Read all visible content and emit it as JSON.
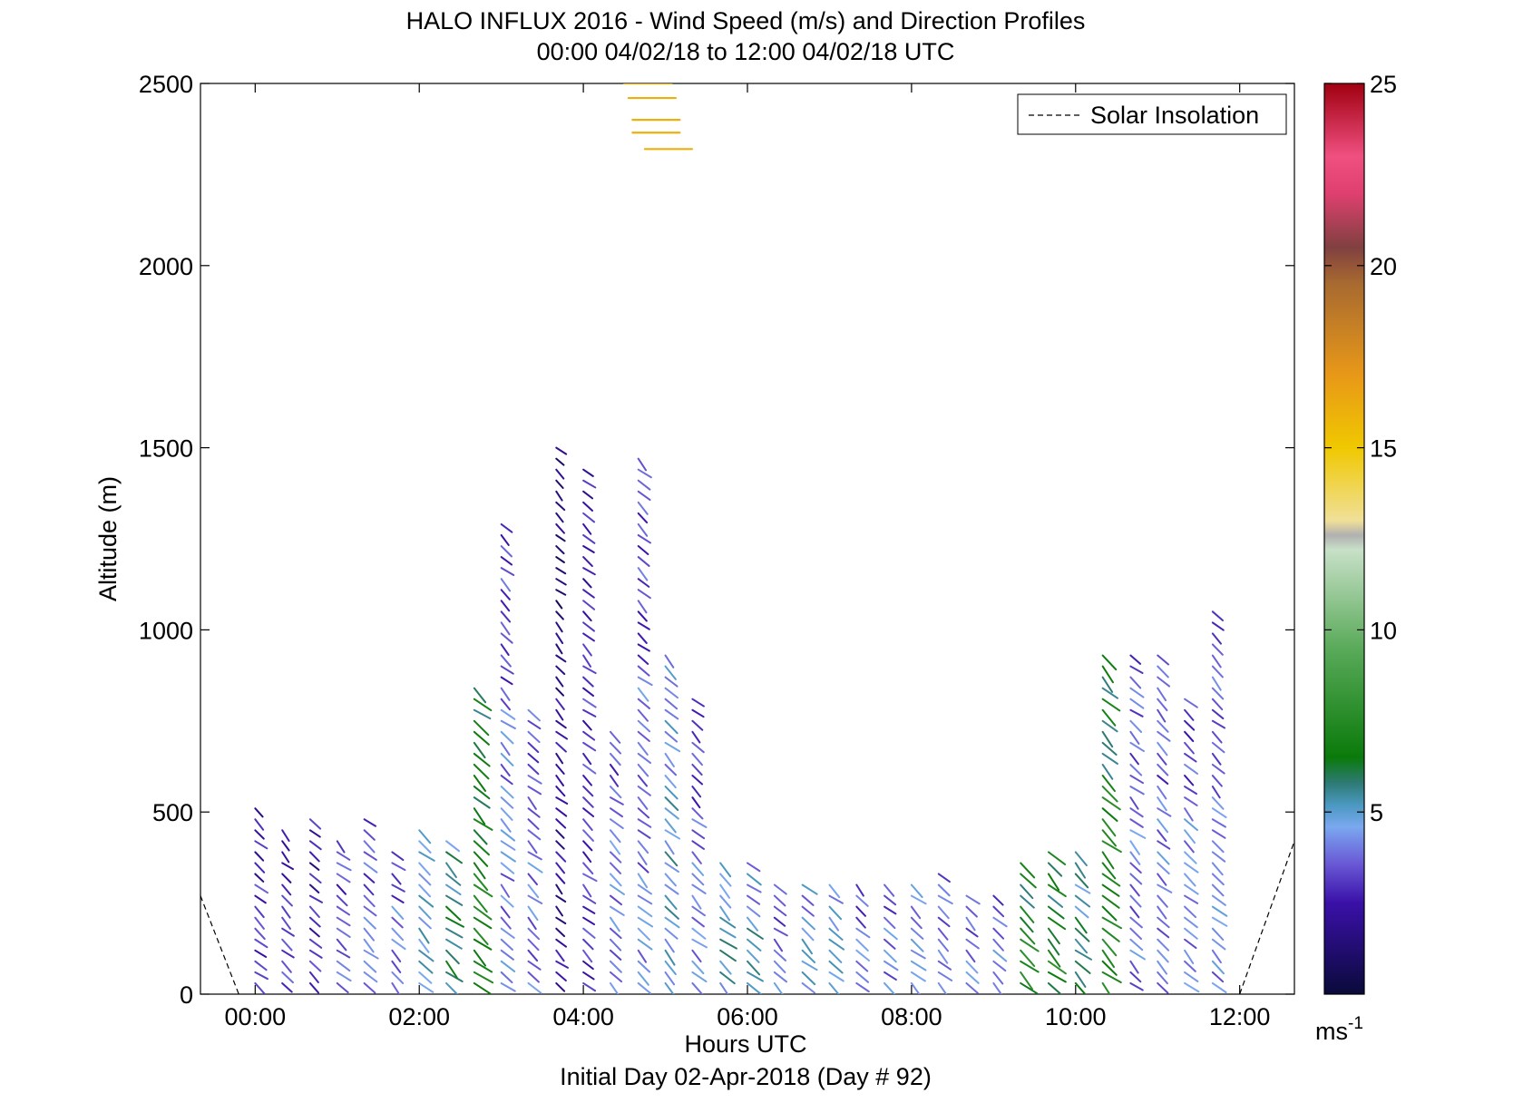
{
  "chart_data": {
    "type": "scatter",
    "title": "HALO INFLUX 2016 - Wind Speed (m/s) and Direction Profiles",
    "subtitle": "00:00 04/02/18 to 12:00 04/02/18  UTC",
    "xlabel": "Hours UTC",
    "xlabel_note": "Initial Day 02-Apr-2018 (Day # 92)",
    "ylabel": "Altitude (m)",
    "xlim": [
      -0.667,
      12.667
    ],
    "ylim": [
      0,
      2500
    ],
    "x_ticks": [
      0,
      2,
      4,
      6,
      8,
      10,
      12
    ],
    "x_tick_labels": [
      "00:00",
      "02:00",
      "04:00",
      "06:00",
      "08:00",
      "10:00",
      "12:00"
    ],
    "y_ticks": [
      0,
      500,
      1000,
      1500,
      2000,
      2500
    ],
    "y_tick_labels": [
      "0",
      "500",
      "1000",
      "1500",
      "2000",
      "2500"
    ],
    "legend": {
      "entries": [
        "Solar Insolation"
      ],
      "placement": "top-right",
      "line_style": "dashed"
    },
    "colorbar": {
      "min": 0,
      "max": 25,
      "ticks": [
        5,
        10,
        15,
        20,
        25
      ],
      "tick_labels": [
        "5",
        "10",
        "15",
        "20",
        "25"
      ],
      "unit_label": "ms",
      "unit_exponent": "-1"
    },
    "solar_insolation": {
      "left": [
        [
          -0.667,
          270
        ],
        [
          -0.2,
          0
        ]
      ],
      "right": [
        [
          12.0,
          0
        ],
        [
          12.667,
          420
        ]
      ]
    },
    "profile_times": [
      0.0,
      0.33,
      0.67,
      1.0,
      1.33,
      1.67,
      2.0,
      2.33,
      2.67,
      3.0,
      3.33,
      3.67,
      4.0,
      4.33,
      4.67,
      5.0,
      5.33,
      5.67,
      6.0,
      6.33,
      6.67,
      7.0,
      7.33,
      7.67,
      8.0,
      8.33,
      8.67,
      9.0,
      9.33,
      9.67,
      10.0,
      10.33,
      10.67,
      11.0,
      11.33,
      11.67
    ],
    "profile_tops": [
      520,
      470,
      480,
      420,
      480,
      400,
      450,
      420,
      850,
      1300,
      790,
      1500,
      1460,
      720,
      1470,
      930,
      820,
      380,
      380,
      320,
      300,
      300,
      300,
      300,
      300,
      330,
      290,
      290,
      380,
      400,
      390,
      950,
      940,
      940,
      830,
      1050
    ],
    "profile_speeds": [
      3,
      3,
      3,
      4,
      4,
      4,
      5,
      6,
      7,
      4,
      4,
      2,
      3,
      4,
      4,
      5,
      4,
      5,
      5,
      4,
      5,
      5,
      4,
      4,
      5,
      4,
      4,
      4,
      7,
      7,
      6,
      7,
      4,
      4,
      4,
      4
    ],
    "upper_segments": [
      {
        "x": 4.5,
        "altitude": 2500,
        "speed": 16
      },
      {
        "x": 4.55,
        "altitude": 2460,
        "speed": 16
      },
      {
        "x": 4.6,
        "altitude": 2400,
        "speed": 16
      },
      {
        "x": 4.6,
        "altitude": 2365,
        "speed": 16
      },
      {
        "x": 4.75,
        "altitude": 2320,
        "speed": 16
      }
    ]
  }
}
